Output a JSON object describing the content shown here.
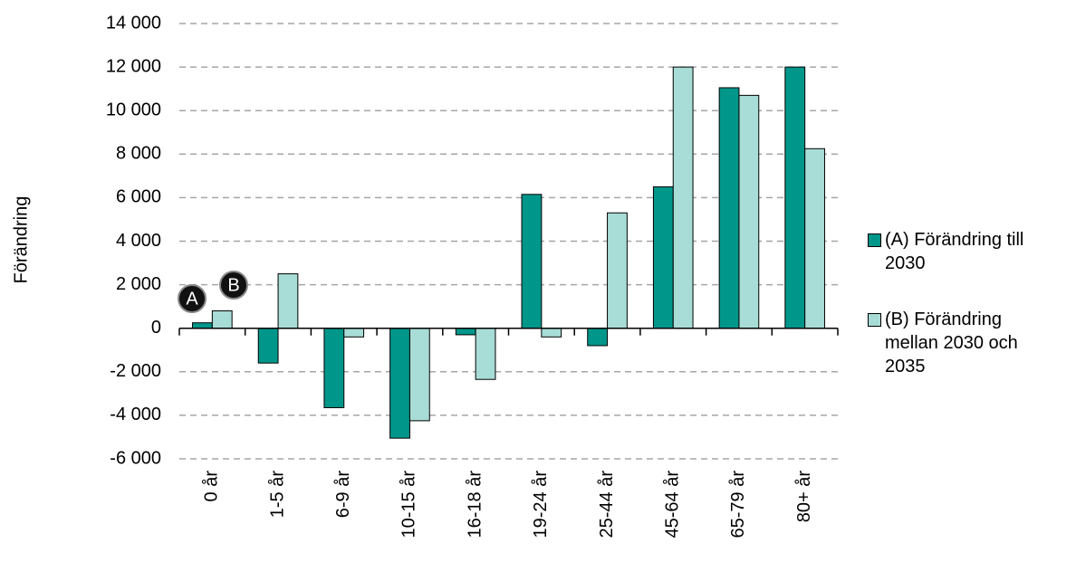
{
  "chart_data": {
    "type": "bar",
    "y_label": "Förändring",
    "categories": [
      "0 år",
      "1-5 år",
      "6-9 år",
      "10-15 år",
      "16-18 år",
      "19-24 år",
      "25-44 år",
      "45-64 år",
      "65-79 år",
      "80+ år"
    ],
    "series": [
      {
        "name": "(A) Förändring till 2030",
        "color": "#00968a",
        "values": [
          250,
          -1600,
          -3650,
          -5050,
          -300,
          6150,
          -800,
          6500,
          11050,
          12000
        ]
      },
      {
        "name": "(B) Förändring mellan 2030 och 2035",
        "color": "#a8dcd6",
        "values": [
          800,
          2500,
          -400,
          -4250,
          -2350,
          -400,
          5300,
          12000,
          10700,
          8250
        ]
      }
    ],
    "annotations": [
      "A",
      "B"
    ],
    "ylim": [
      -6000,
      14000
    ],
    "yticks": [
      {
        "value": -6000,
        "label": "-6 000"
      },
      {
        "value": -4000,
        "label": "-4 000"
      },
      {
        "value": -2000,
        "label": "-2 000"
      },
      0,
      {
        "value": 2000,
        "label": "2 000"
      },
      {
        "value": 4000,
        "label": "4 000"
      },
      {
        "value": 6000,
        "label": "6 000"
      },
      {
        "value": 8000,
        "label": "8 000"
      },
      {
        "value": 10000,
        "label": "10 000"
      },
      {
        "value": 12000,
        "label": "12 000"
      },
      {
        "value": 14000,
        "label": "14 000"
      }
    ],
    "grid": true
  }
}
